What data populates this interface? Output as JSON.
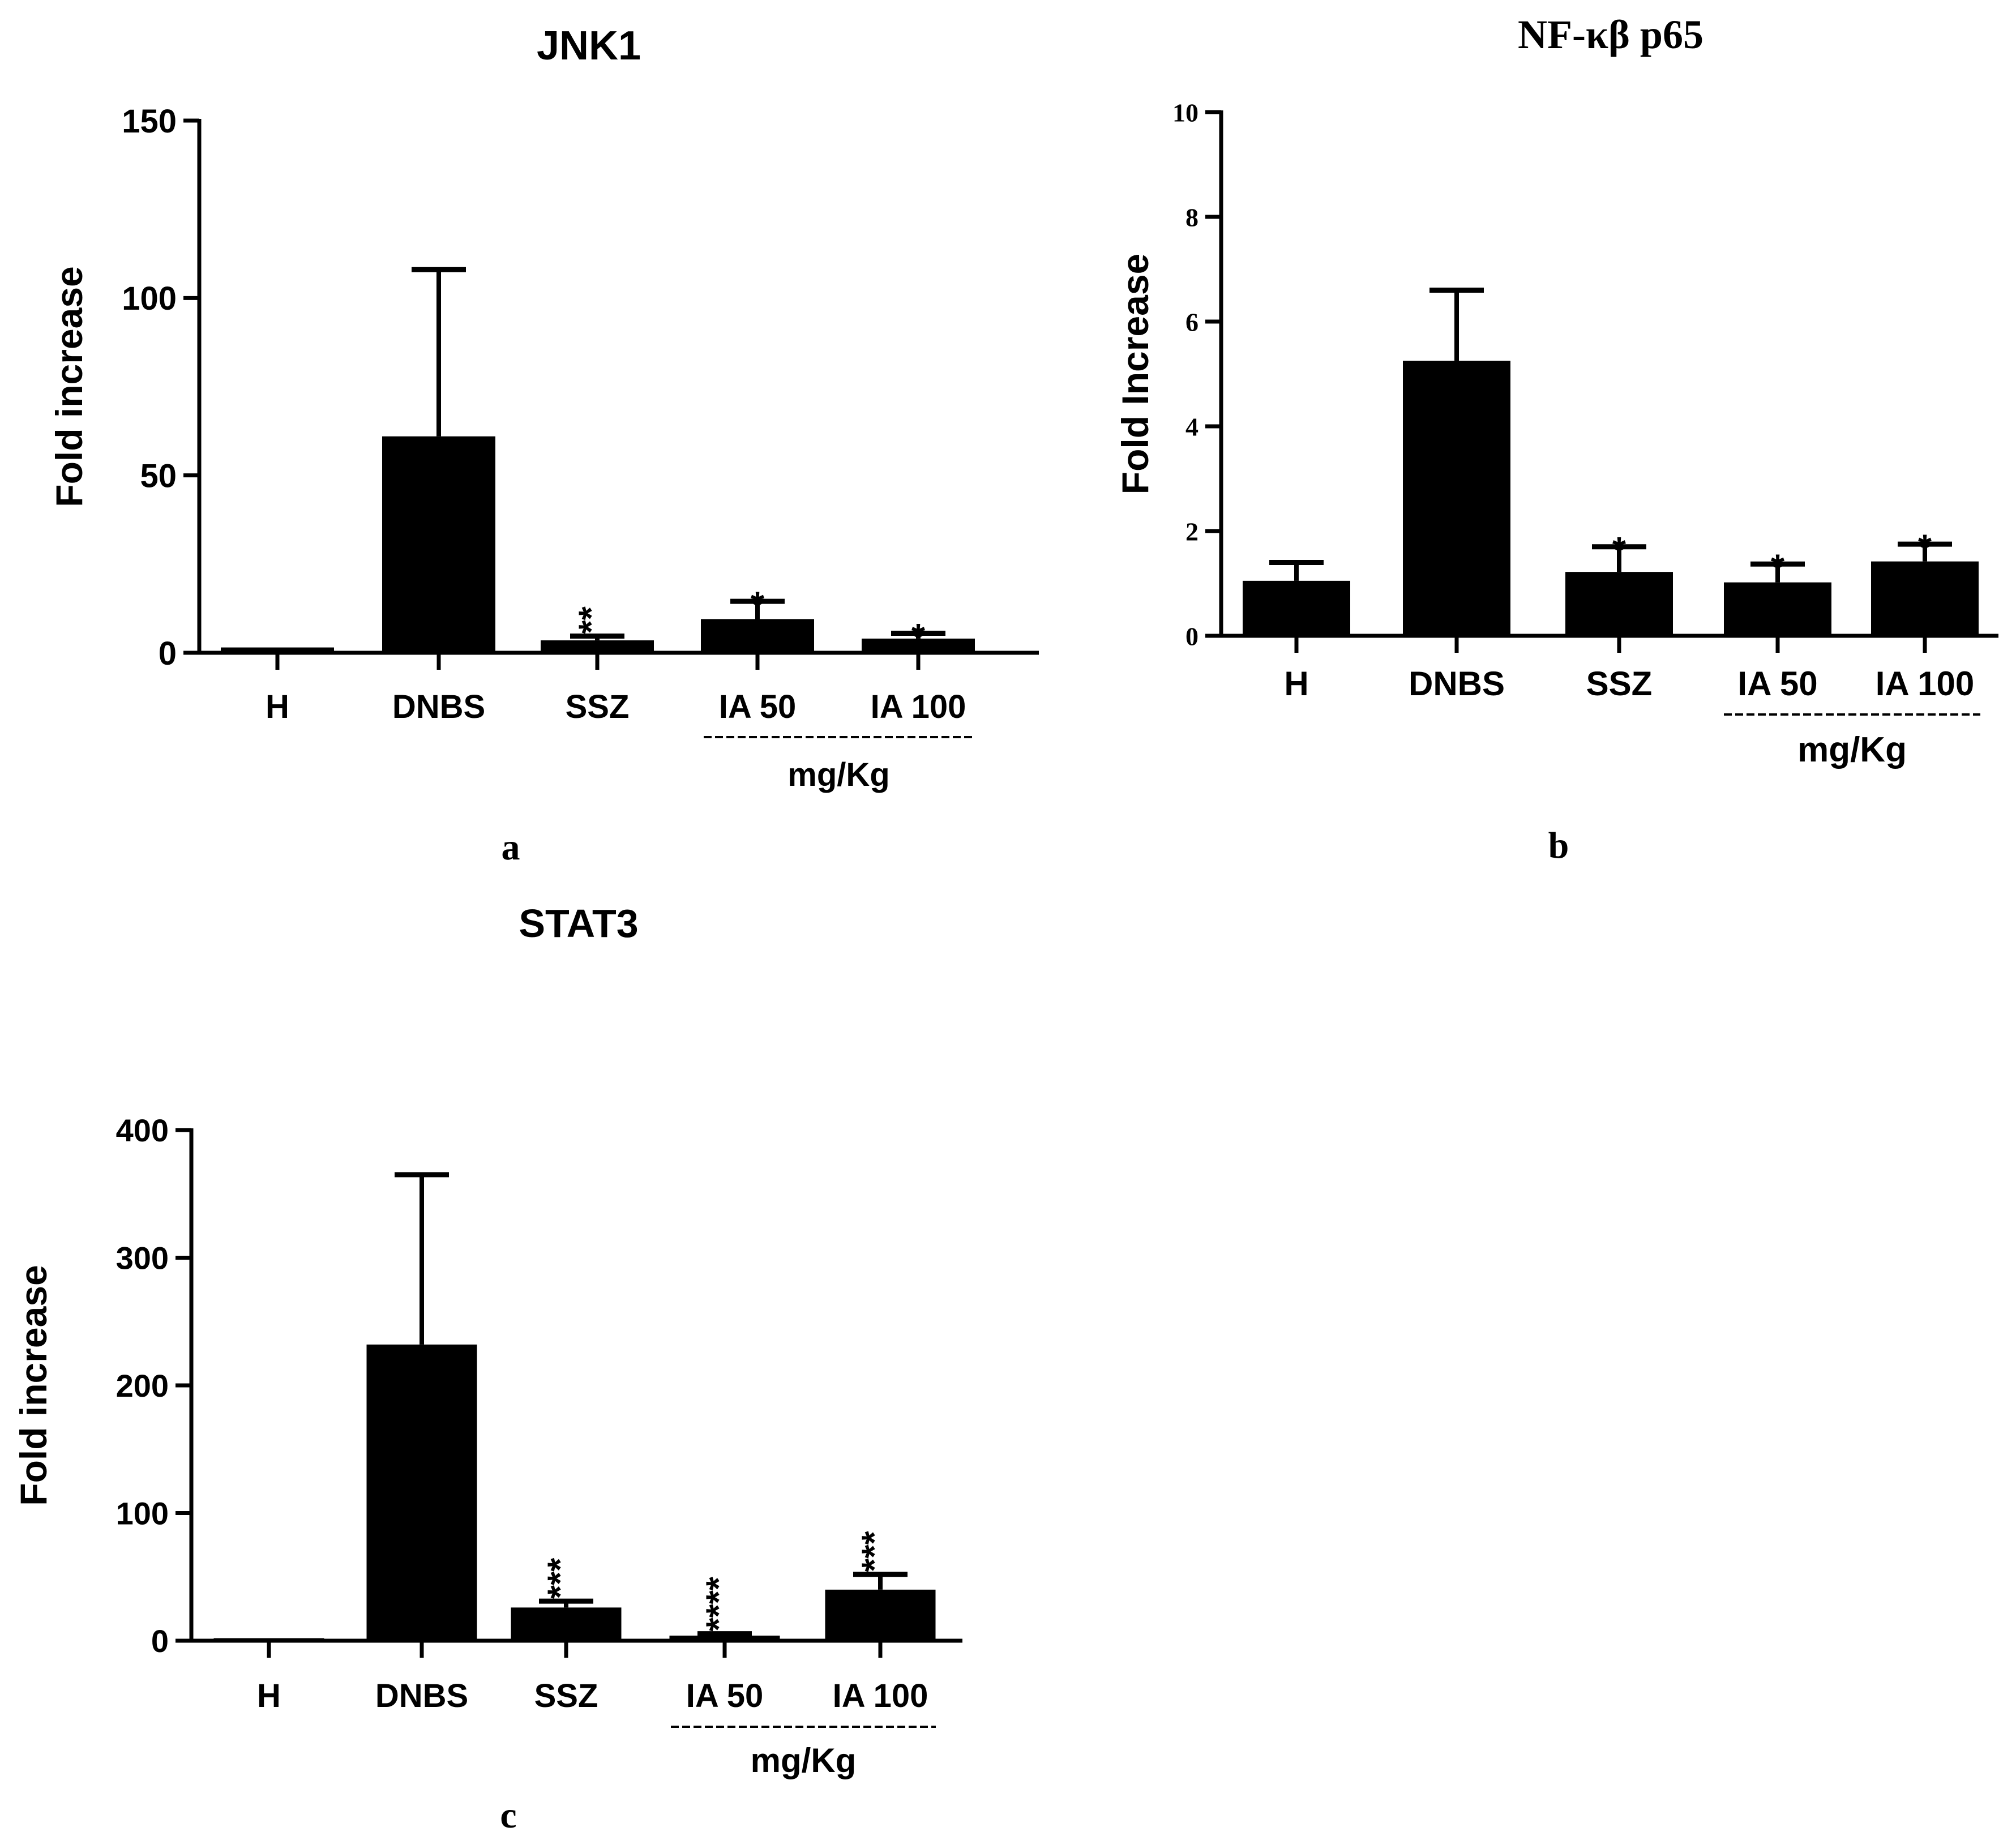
{
  "chart_data": [
    {
      "panel": "a",
      "type": "bar",
      "title": "JNK1",
      "ylabel": "Fold increase",
      "xlabel": "",
      "ylim": [
        0,
        150
      ],
      "yticks": [
        0,
        50,
        100,
        150
      ],
      "categories": [
        "H",
        "DNBS",
        "SSZ",
        "IA 50",
        "IA 100"
      ],
      "values": [
        1.5,
        61,
        3.5,
        9.5,
        4
      ],
      "errors": [
        0,
        47,
        1.2,
        5,
        1.5
      ],
      "significance": [
        "",
        "",
        "**",
        "*",
        "*"
      ],
      "dose_group": {
        "label": "mg/Kg",
        "categories": [
          "IA 50",
          "IA 100"
        ]
      },
      "grid": false,
      "legend": "none"
    },
    {
      "panel": "b",
      "type": "bar",
      "title": "NF-κβ p65",
      "ylabel": "Fold Increase",
      "xlabel": "",
      "ylim": [
        0,
        10
      ],
      "yticks": [
        0,
        2,
        4,
        6,
        8,
        10
      ],
      "categories": [
        "H",
        "DNBS",
        "SSZ",
        "IA 50",
        "IA 100"
      ],
      "values": [
        1.05,
        5.25,
        1.22,
        1.02,
        1.42
      ],
      "errors": [
        0.35,
        1.35,
        0.48,
        0.35,
        0.33
      ],
      "significance": [
        "",
        "",
        "*",
        "*",
        "*"
      ],
      "dose_group": {
        "label": "mg/Kg",
        "categories": [
          "IA 50",
          "IA 100"
        ]
      },
      "grid": false,
      "legend": "none"
    },
    {
      "panel": "c",
      "type": "bar",
      "title": "STAT3",
      "ylabel": "Fold increase",
      "xlabel": "",
      "ylim": [
        0,
        400
      ],
      "yticks": [
        0,
        100,
        200,
        300,
        400
      ],
      "categories": [
        "H",
        "DNBS",
        "SSZ",
        "IA 50",
        "IA 100"
      ],
      "values": [
        2,
        232,
        26,
        4,
        40
      ],
      "errors": [
        0,
        133,
        5,
        1.5,
        12
      ],
      "significance": [
        "",
        "",
        "***",
        "****",
        "***"
      ],
      "dose_group": {
        "label": "mg/Kg",
        "categories": [
          "IA 50",
          "IA 100"
        ]
      },
      "grid": false,
      "legend": "none"
    }
  ]
}
